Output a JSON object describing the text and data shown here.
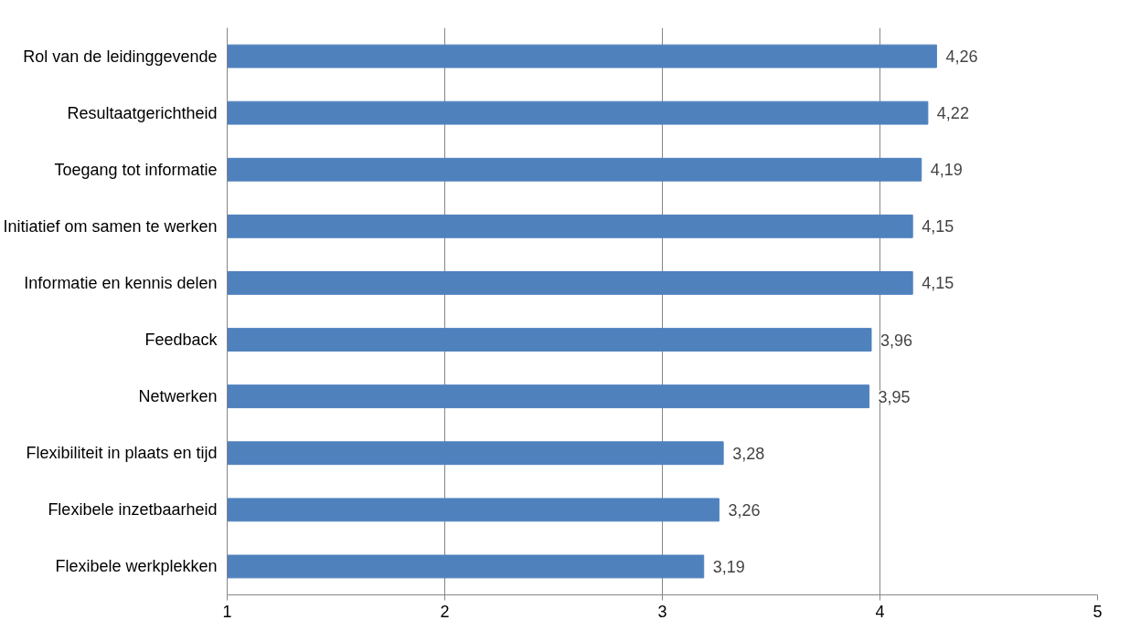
{
  "chart_data": {
    "type": "bar",
    "orientation": "horizontal",
    "categories": [
      "Rol van de leidinggevende",
      "Resultaatgerichtheid",
      "Toegang tot informatie",
      "Initiatief om samen te werken",
      "Informatie en kennis delen",
      "Feedback",
      "Netwerken",
      "Flexibiliteit in plaats en tijd",
      "Flexibele inzetbaarheid",
      "Flexibele werkplekken"
    ],
    "values": [
      4.26,
      4.22,
      4.19,
      4.15,
      4.15,
      3.96,
      3.95,
      3.28,
      3.26,
      3.19
    ],
    "value_labels": [
      "4,26",
      "4,22",
      "4,19",
      "4,15",
      "4,15",
      "3,96",
      "3,95",
      "3,28",
      "3,26",
      "3,19"
    ],
    "color": "#4f81bd",
    "xlim": [
      1,
      5
    ],
    "xticks": [
      1,
      2,
      3,
      4,
      5
    ],
    "grid": "x"
  }
}
